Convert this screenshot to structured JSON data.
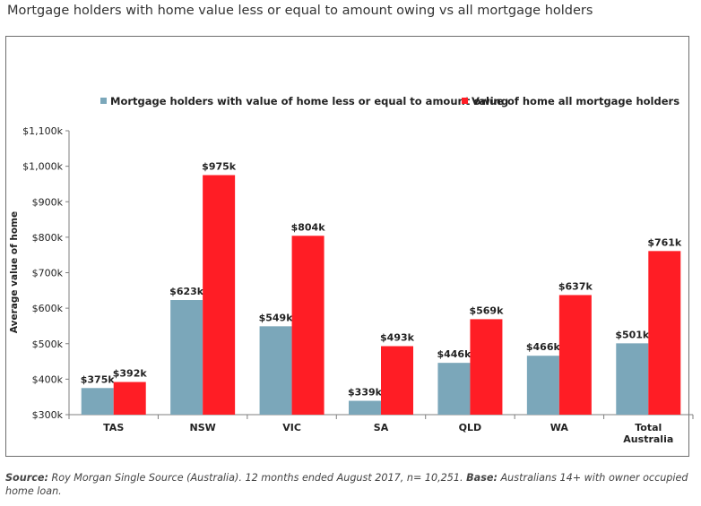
{
  "title": "Mortgage holders with home value less or equal to amount owing vs all mortgage holders",
  "colors": {
    "series1": "#7ba7ba",
    "series2": "#ff1d25",
    "axis": "#7f7f7f"
  },
  "footer": {
    "source_label": "Source:",
    "source_text": " Roy Morgan Single Source (Australia). 12 months ended August 2017, n= 10,251. ",
    "base_label": "Base:",
    "base_text": " Australians 14+ with owner occupied home loan."
  },
  "chart_data": {
    "type": "bar",
    "title": "Mortgage holders with home value less or equal to amount owing vs all mortgage holders",
    "xlabel": "",
    "ylabel": "Average value of home",
    "ylim": [
      300,
      1100
    ],
    "yticks": [
      300,
      400,
      500,
      600,
      700,
      800,
      900,
      1000,
      1100
    ],
    "ytick_labels": [
      "$300k",
      "$400k",
      "$500k",
      "$600k",
      "$700k",
      "$800k",
      "$900k",
      "$1,000k",
      "$1,100k"
    ],
    "categories": [
      "TAS",
      "NSW",
      "VIC",
      "SA",
      "QLD",
      "WA",
      "Total Australia"
    ],
    "series": [
      {
        "name": "Mortgage holders with value of home less or equal to amount owing",
        "values": [
          375,
          623,
          549,
          339,
          446,
          466,
          501
        ],
        "labels": [
          "$375k",
          "$623k",
          "$549k",
          "$339k",
          "$446k",
          "$466k",
          "$501k"
        ]
      },
      {
        "name": "Value of home all mortgage holders",
        "values": [
          392,
          975,
          804,
          493,
          569,
          637,
          761
        ],
        "labels": [
          "$392k",
          "$975k",
          "$804k",
          "$493k",
          "$569k",
          "$637k",
          "$761k"
        ]
      }
    ],
    "legend": "top",
    "grid": false
  }
}
